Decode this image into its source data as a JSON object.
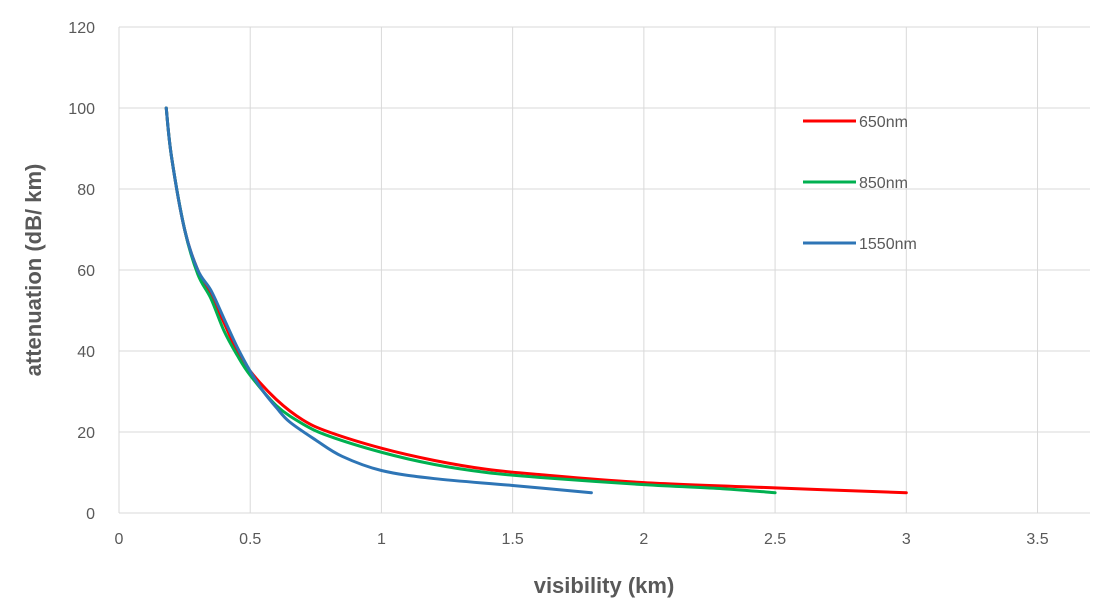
{
  "chart_data": {
    "type": "line",
    "xlabel": "visibility (km)",
    "ylabel": "attenuation (dB/ km)",
    "xlim": [
      0,
      3.7
    ],
    "ylim": [
      0,
      120
    ],
    "x_ticks": [
      0,
      0.5,
      1,
      1.5,
      2,
      2.5,
      3,
      3.5
    ],
    "x_tick_labels": [
      "0",
      "0.5",
      "1",
      "1.5",
      "2",
      "2.5",
      "3",
      "3.5"
    ],
    "y_ticks": [
      0,
      20,
      40,
      60,
      80,
      100,
      120
    ],
    "y_tick_labels": [
      "0",
      "20",
      "40",
      "60",
      "80",
      "100",
      "120"
    ],
    "grid": true,
    "legend_position": "right",
    "series": [
      {
        "name": "650nm",
        "color": "#ff0000",
        "points": [
          [
            0.18,
            100
          ],
          [
            0.2,
            88
          ],
          [
            0.25,
            70
          ],
          [
            0.3,
            60
          ],
          [
            0.35,
            54
          ],
          [
            0.4,
            47
          ],
          [
            0.45,
            40
          ],
          [
            0.5,
            35
          ],
          [
            0.6,
            28
          ],
          [
            0.7,
            23
          ],
          [
            0.8,
            20
          ],
          [
            1.0,
            16
          ],
          [
            1.2,
            13
          ],
          [
            1.4,
            10.8
          ],
          [
            1.6,
            9.5
          ],
          [
            2.0,
            7.5
          ],
          [
            2.5,
            6.2
          ],
          [
            3.0,
            5
          ]
        ]
      },
      {
        "name": "850nm",
        "color": "#00b050",
        "points": [
          [
            0.18,
            100
          ],
          [
            0.2,
            88
          ],
          [
            0.25,
            70
          ],
          [
            0.3,
            59
          ],
          [
            0.35,
            53
          ],
          [
            0.4,
            45
          ],
          [
            0.45,
            39
          ],
          [
            0.5,
            34
          ],
          [
            0.6,
            26.5
          ],
          [
            0.7,
            22
          ],
          [
            0.8,
            19
          ],
          [
            1.0,
            15
          ],
          [
            1.2,
            12
          ],
          [
            1.4,
            10
          ],
          [
            1.6,
            8.8
          ],
          [
            2.0,
            7
          ],
          [
            2.3,
            6
          ],
          [
            2.5,
            5
          ]
        ]
      },
      {
        "name": "1550nm",
        "color": "#2e75b6",
        "points": [
          [
            0.18,
            100
          ],
          [
            0.2,
            88
          ],
          [
            0.25,
            70
          ],
          [
            0.3,
            60
          ],
          [
            0.35,
            55
          ],
          [
            0.4,
            48
          ],
          [
            0.45,
            41
          ],
          [
            0.5,
            35
          ],
          [
            0.55,
            30
          ],
          [
            0.6,
            26
          ],
          [
            0.65,
            22.5
          ],
          [
            0.75,
            18
          ],
          [
            0.85,
            14
          ],
          [
            1.0,
            10.5
          ],
          [
            1.2,
            8.5
          ],
          [
            1.5,
            6.8
          ],
          [
            1.8,
            5
          ]
        ]
      }
    ]
  }
}
